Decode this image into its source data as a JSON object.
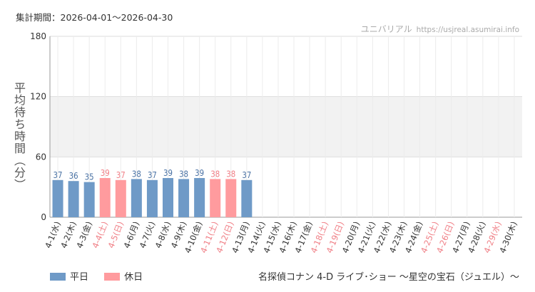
{
  "header": {
    "period": "集計期間：2026-04-01〜2026-04-30",
    "site_name": "ユニバリアル",
    "site_url": "https://usjreal.asumirai.info"
  },
  "footer": {
    "attraction": "名探偵コナン 4-D ライブ･ショー 〜星空の宝石（ジュエル）〜"
  },
  "legend": [
    {
      "label": "平日",
      "color": "#6f9ac7"
    },
    {
      "label": "休日",
      "color": "#ff9b9e"
    }
  ],
  "colors": {
    "weekday_bar": "#6f9ac7",
    "holiday_bar": "#ff9b9e",
    "weekday_text": "#4a72a4",
    "holiday_text": "#f07f86",
    "band": "#f2f2f2",
    "grid": "#dddddd"
  },
  "chart_data": {
    "type": "bar",
    "ylabel": "平均待ち時間（分）",
    "ylim": [
      0,
      180
    ],
    "yticks": [
      0,
      60,
      120,
      180
    ],
    "grid": true,
    "legend_position": "bottom-left",
    "categories": [
      "4-1(水)",
      "4-2(木)",
      "4-3(金)",
      "4-4(土)",
      "4-5(日)",
      "4-6(月)",
      "4-7(火)",
      "4-8(水)",
      "4-9(木)",
      "4-10(金)",
      "4-11(土)",
      "4-12(日)",
      "4-13(月)",
      "4-14(火)",
      "4-15(水)",
      "4-16(木)",
      "4-17(金)",
      "4-18(土)",
      "4-19(日)",
      "4-20(月)",
      "4-21(火)",
      "4-22(水)",
      "4-23(木)",
      "4-24(金)",
      "4-25(土)",
      "4-26(日)",
      "4-27(月)",
      "4-28(火)",
      "4-29(水)",
      "4-30(木)"
    ],
    "holiday": [
      false,
      false,
      false,
      true,
      true,
      false,
      false,
      false,
      false,
      false,
      true,
      true,
      false,
      false,
      false,
      false,
      false,
      true,
      true,
      false,
      false,
      false,
      false,
      false,
      true,
      true,
      false,
      false,
      true,
      false
    ],
    "values": [
      37,
      36,
      35,
      39,
      37,
      38,
      37,
      39,
      38,
      39,
      38,
      38,
      37,
      null,
      null,
      null,
      null,
      null,
      null,
      null,
      null,
      null,
      null,
      null,
      null,
      null,
      null,
      null,
      null,
      null
    ]
  }
}
